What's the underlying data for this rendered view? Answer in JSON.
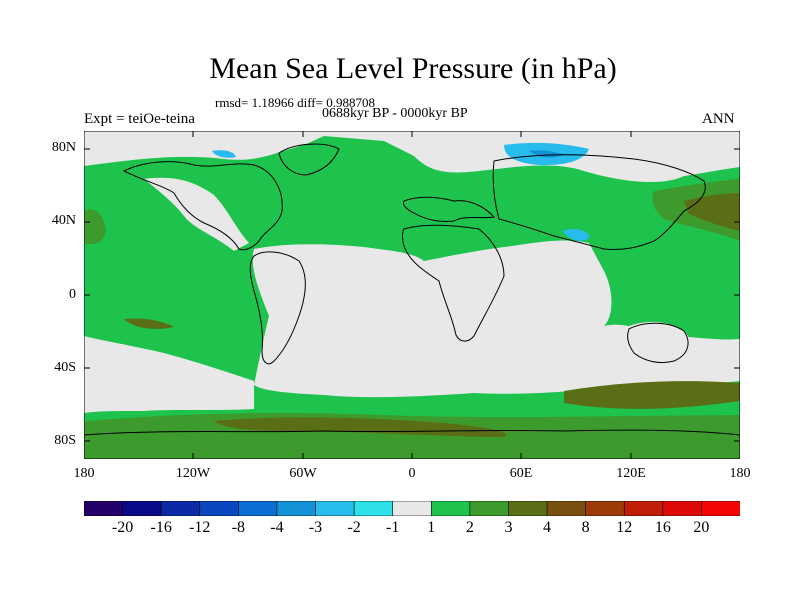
{
  "title": "Mean Sea Level Pressure (in hPa)",
  "stats_line": "rmsd= 1.18966 diff= 0.988708",
  "period": "0688kyr BP - 0000kyr BP",
  "experiment": "Expt = teiOe-teina",
  "season": "ANN",
  "lat_labels": [
    "80N",
    "40N",
    "0",
    "40S",
    "80S"
  ],
  "lon_labels": [
    "180",
    "120W",
    "60W",
    "0",
    "60E",
    "120E",
    "180"
  ],
  "colorbar": {
    "labels": [
      "-20",
      "-16",
      "-12",
      "-8",
      "-4",
      "-3",
      "-2",
      "-1",
      "1",
      "2",
      "3",
      "4",
      "8",
      "12",
      "16",
      "20"
    ],
    "colors": [
      "#24006b",
      "#0a0a88",
      "#0a2aa6",
      "#0a48c0",
      "#0a6ed2",
      "#1492d8",
      "#28bcec",
      "#2ee0e8",
      "#e8e8e8",
      "#1ec34e",
      "#3d9a2c",
      "#5a6e16",
      "#7a5010",
      "#9c3a08",
      "#c01e06",
      "#de0a0a",
      "#f20505"
    ]
  },
  "legend_colors": {
    "ocean_neutral": "#e8e8e8",
    "green": "#1ec34e",
    "dark_green": "#3d9a2c",
    "olive": "#5a6e16",
    "cyan": "#28bcec",
    "light_blue": "#1492d8"
  }
}
